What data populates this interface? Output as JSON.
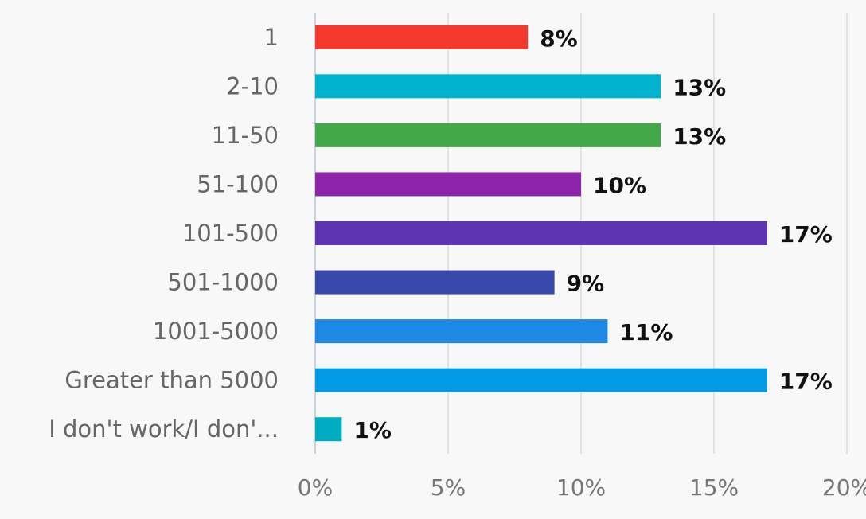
{
  "chart_data": {
    "type": "bar",
    "orientation": "horizontal",
    "categories": [
      "1",
      "2-10",
      "11-50",
      "51-100",
      "101-500",
      "501-1000",
      "1001-5000",
      "Greater than 5000",
      "I don't work/I don'..."
    ],
    "values": [
      8,
      13,
      13,
      10,
      17,
      9,
      11,
      17,
      1
    ],
    "value_labels": [
      "8%",
      "13%",
      "13%",
      "10%",
      "17%",
      "9%",
      "11%",
      "17%",
      "1%"
    ],
    "colors": [
      "#f4392d",
      "#00b4d0",
      "#43a847",
      "#8e24aa",
      "#5e35b1",
      "#3949ab",
      "#1e88e5",
      "#039be5",
      "#00acc1"
    ],
    "xlim": [
      0,
      20
    ],
    "xticks": [
      {
        "value": 0,
        "label": "0%"
      },
      {
        "value": 5,
        "label": "5%"
      },
      {
        "value": 10,
        "label": "10%"
      },
      {
        "value": 15,
        "label": "15%"
      },
      {
        "value": 20,
        "label": "20%"
      }
    ],
    "grid": true
  }
}
